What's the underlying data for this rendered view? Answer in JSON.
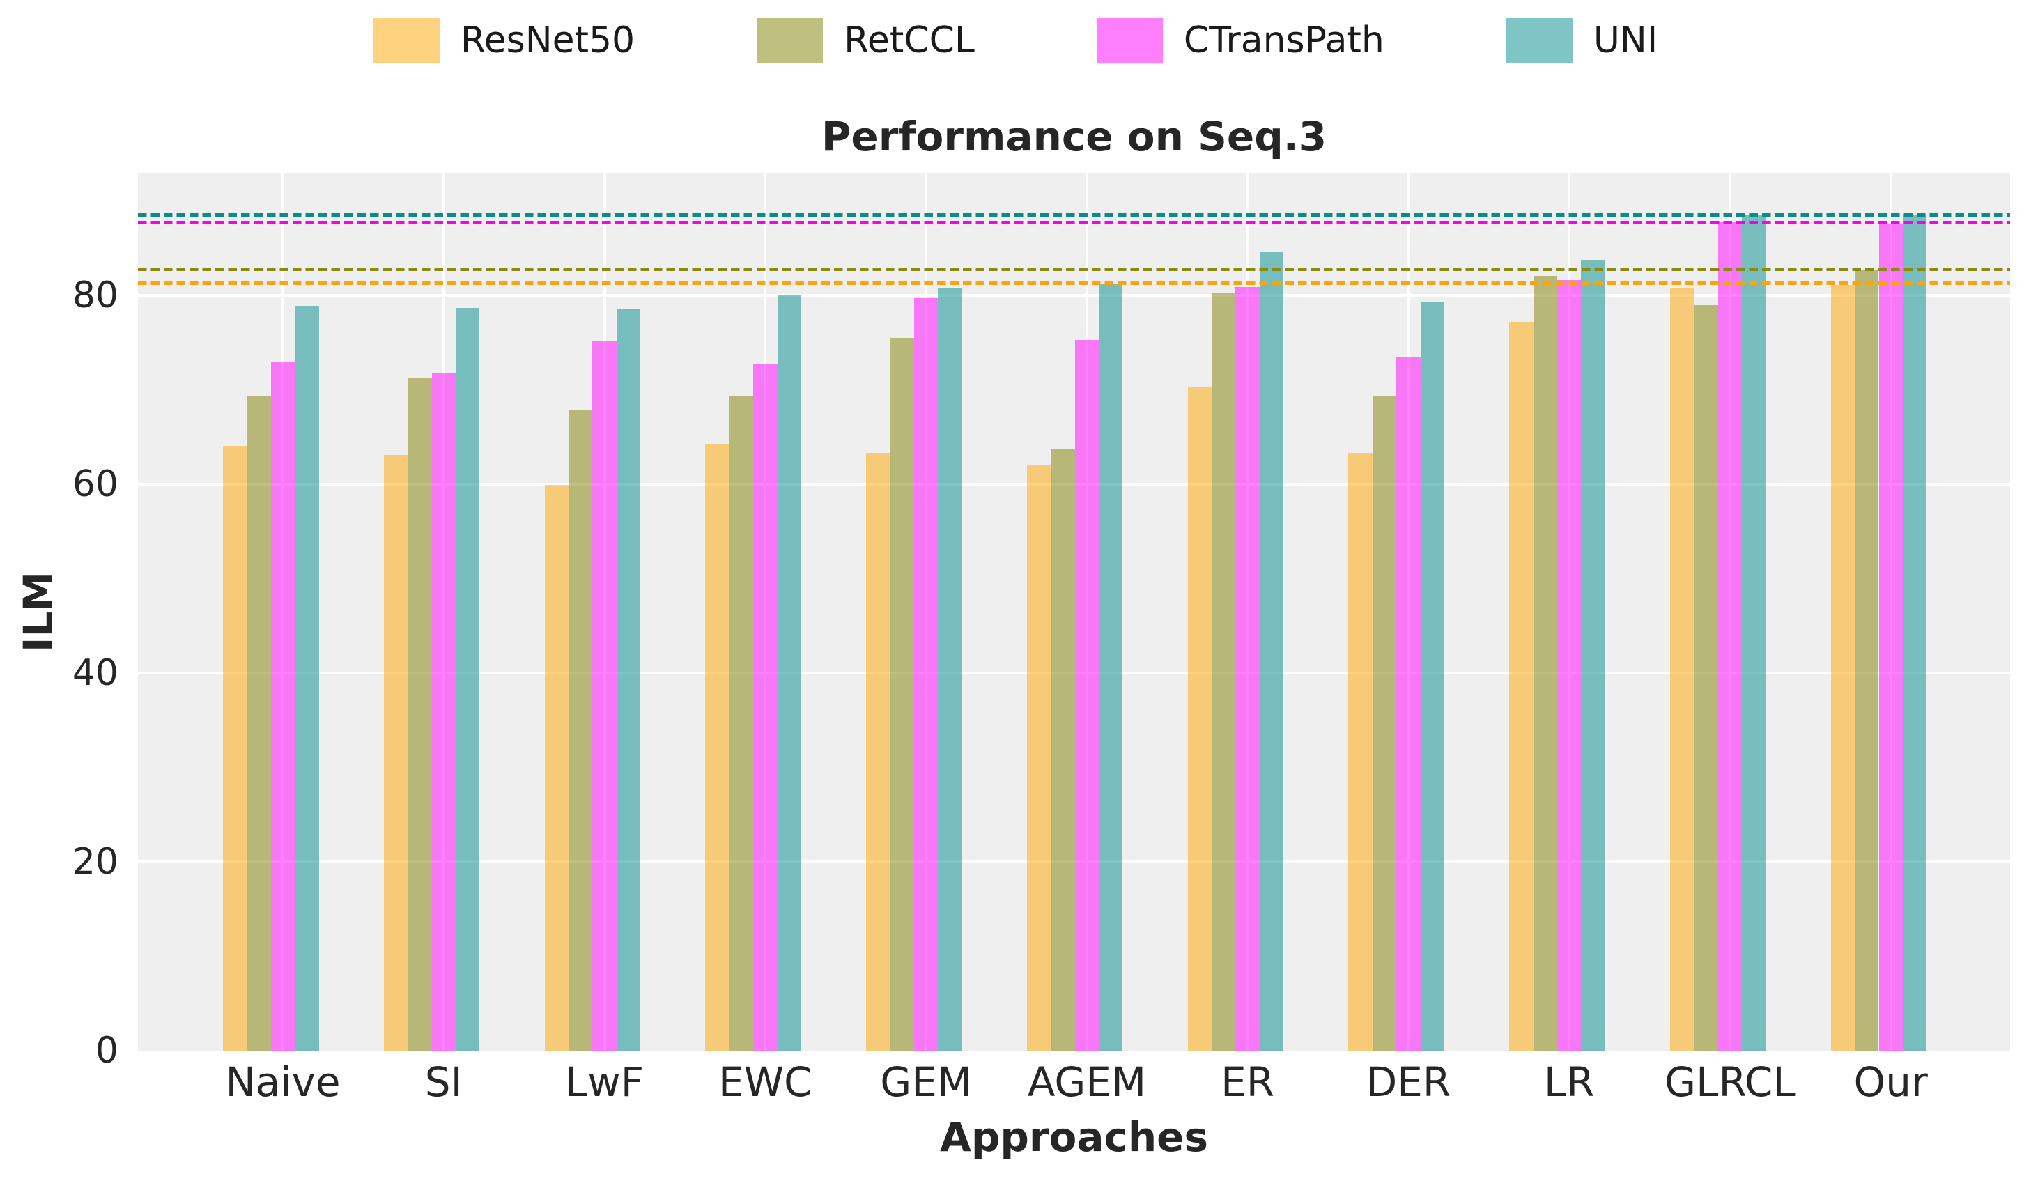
{
  "chart_data": {
    "type": "bar",
    "title": "Performance on Seq.3",
    "xlabel": "Approaches",
    "ylabel": "ILM",
    "ylim": [
      0,
      93
    ],
    "yticks": [
      0,
      20,
      40,
      60,
      80
    ],
    "grid": true,
    "legend_position": "top",
    "plot_background": "#EFEFEF",
    "gridline_color": "#FFFFFF",
    "categories": [
      "Naive",
      "SI",
      "LwF",
      "EWC",
      "GEM",
      "AGEM",
      "ER",
      "DER",
      "LR",
      "GLRCL",
      "Our"
    ],
    "series": [
      {
        "name": "ResNet50",
        "color": "#FFA500",
        "fill": "rgba(255,165,0,0.5)",
        "values": [
          64.1,
          63.1,
          59.9,
          64.3,
          63.3,
          62.0,
          70.3,
          63.3,
          77.2,
          80.8,
          81.1
        ]
      },
      {
        "name": "RetCCL",
        "color": "#808000",
        "fill": "rgba(128,128,0,0.5)",
        "values": [
          69.4,
          71.2,
          67.9,
          69.4,
          75.5,
          63.7,
          80.3,
          69.4,
          82.1,
          79.0,
          82.7
        ]
      },
      {
        "name": "CTransPath",
        "color": "#FF00FF",
        "fill": "rgba(255,0,255,0.5)",
        "values": [
          73.0,
          71.8,
          75.2,
          72.7,
          79.7,
          75.3,
          80.9,
          73.5,
          81.6,
          87.8,
          87.6
        ]
      },
      {
        "name": "UNI",
        "color": "#008B8B",
        "fill": "rgba(0,139,139,0.5)",
        "values": [
          78.9,
          78.7,
          78.5,
          80.1,
          80.8,
          81.2,
          84.6,
          79.3,
          83.8,
          88.5,
          88.6
        ]
      }
    ],
    "reference_lines": [
      {
        "series": "ResNet50",
        "value": 81.3,
        "style": "dashed",
        "color": "#FCA50A"
      },
      {
        "series": "RetCCL",
        "value": 82.8,
        "style": "dashed",
        "color": "#8A8A10"
      },
      {
        "series": "CTransPath",
        "value": 87.7,
        "style": "dashed",
        "color": "#F400F4"
      },
      {
        "series": "UNI",
        "value": 88.5,
        "style": "dashed",
        "color": "#0C8B8B"
      }
    ]
  }
}
